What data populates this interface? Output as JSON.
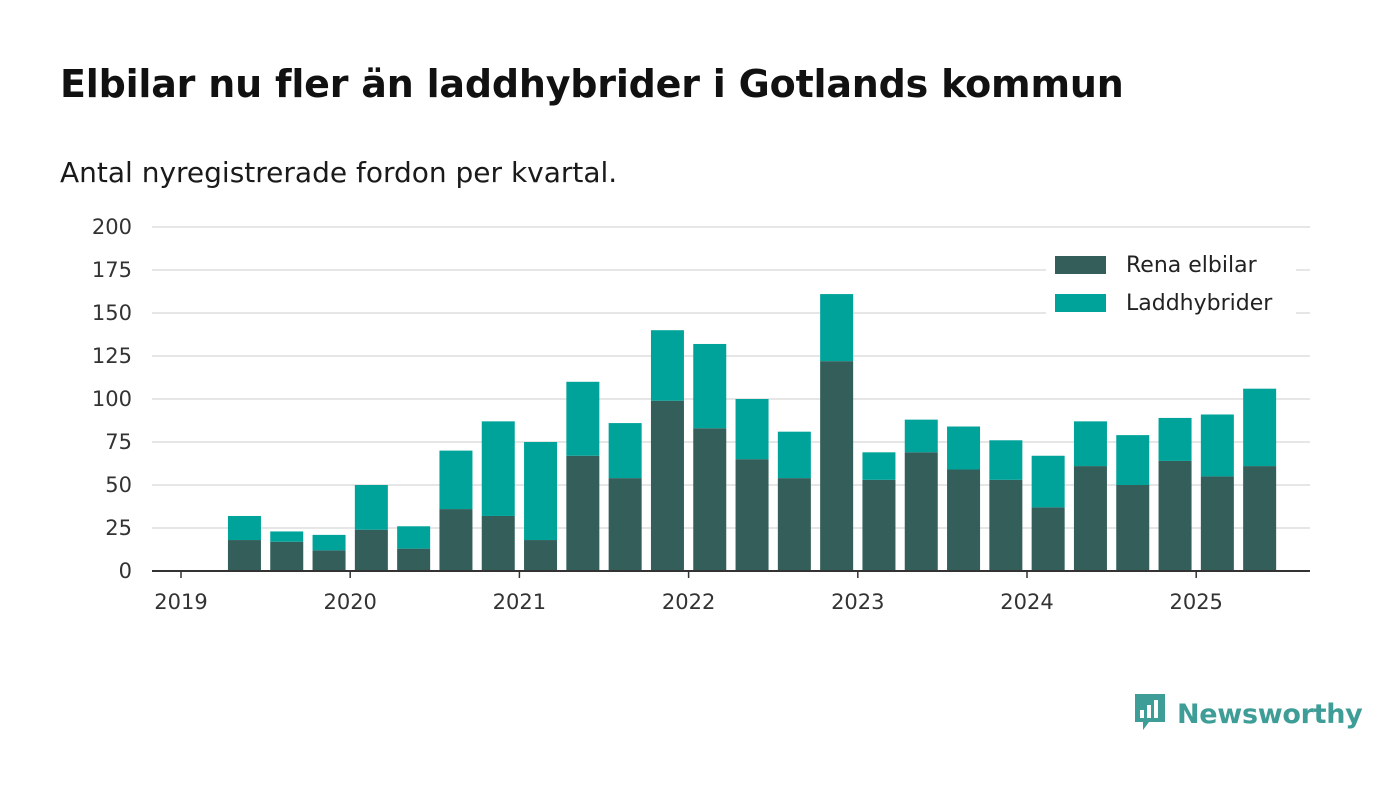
{
  "header": {
    "title": "Elbilar nu fler än laddhybrider i Gotlands kommun",
    "subtitle": "Antal nyregistrerade fordon per kvartal."
  },
  "brand": {
    "name": "Newsworthy",
    "color": "#3f9d97",
    "icon": "bar-chart-speech-bubble-icon"
  },
  "colors": {
    "electric": "#335e5a",
    "hybrid": "#00a39a",
    "grid": "#dddddd",
    "axis": "#333333"
  },
  "chart_data": {
    "type": "bar",
    "stacked": true,
    "categories": [
      "2019 Q2",
      "2019 Q3",
      "2019 Q4",
      "2020 Q1",
      "2020 Q2",
      "2020 Q3",
      "2020 Q4",
      "2021 Q1",
      "2021 Q2",
      "2021 Q3",
      "2021 Q4",
      "2022 Q1",
      "2022 Q2",
      "2022 Q3",
      "2022 Q4",
      "2023 Q1",
      "2023 Q2",
      "2023 Q3",
      "2023 Q4",
      "2024 Q1",
      "2024 Q2",
      "2024 Q3",
      "2024 Q4",
      "2025 Q1",
      "2025 Q2"
    ],
    "series": [
      {
        "name": "Rena elbilar",
        "values": [
          18,
          17,
          12,
          24,
          13,
          36,
          32,
          18,
          67,
          54,
          99,
          83,
          65,
          54,
          122,
          53,
          69,
          59,
          53,
          37,
          61,
          50,
          64,
          55,
          61
        ]
      },
      {
        "name": "Laddhybrider",
        "values": [
          14,
          6,
          9,
          26,
          13,
          34,
          55,
          57,
          43,
          32,
          41,
          49,
          35,
          27,
          39,
          16,
          19,
          25,
          23,
          30,
          26,
          29,
          25,
          36,
          45
        ]
      }
    ],
    "x_ticks": [
      "2019",
      "2020",
      "2021",
      "2022",
      "2023",
      "2024",
      "2025"
    ],
    "y_ticks": [
      0,
      25,
      50,
      75,
      100,
      125,
      150,
      175,
      200
    ],
    "ylim": [
      0,
      200
    ],
    "grid": true,
    "legend_position": "top-right",
    "xlabel": "",
    "ylabel": ""
  }
}
